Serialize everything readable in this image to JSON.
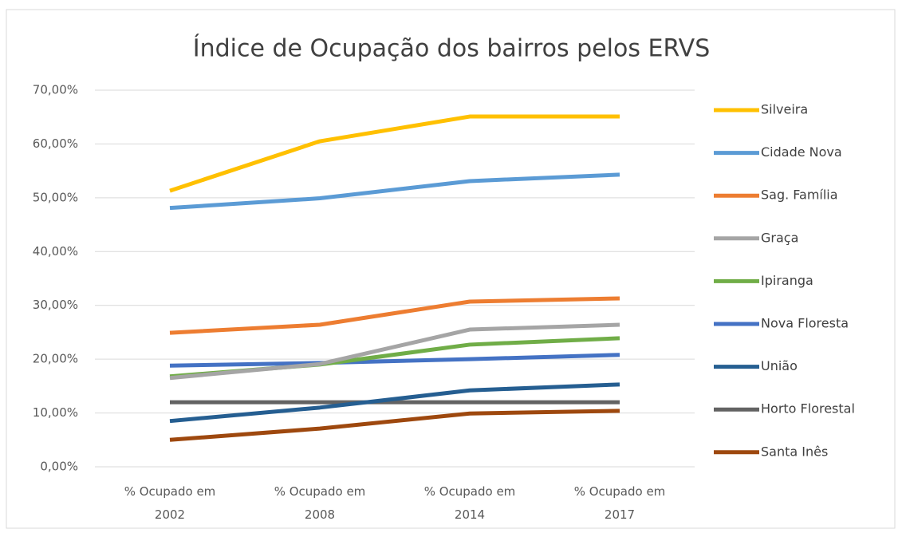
{
  "chart_data": {
    "type": "line",
    "title": "Índice de Ocupação dos bairros pelos ERVS",
    "categories": [
      "% Ocupado em 2002",
      "% Ocupado em 2008",
      "% Ocupado em 2014",
      "% Ocupado em 2017"
    ],
    "series": [
      {
        "name": "Silveira",
        "color": "#FFC000",
        "values": [
          51.3,
          60.5,
          65.1,
          65.1
        ]
      },
      {
        "name": "Cidade Nova",
        "color": "#5B9BD5",
        "values": [
          48.1,
          49.9,
          53.1,
          54.3
        ]
      },
      {
        "name": "Sag. Família",
        "color": "#ED7D31",
        "values": [
          24.9,
          26.4,
          30.7,
          31.3
        ]
      },
      {
        "name": "Graça",
        "color": "#A5A5A5",
        "values": [
          16.5,
          19.1,
          25.5,
          26.4
        ]
      },
      {
        "name": "Ipiranga",
        "color": "#70AD47",
        "values": [
          16.8,
          19.0,
          22.7,
          23.9
        ]
      },
      {
        "name": "Nova Floresta",
        "color": "#4472C4",
        "values": [
          18.8,
          19.3,
          20.0,
          20.8
        ]
      },
      {
        "name": "União",
        "color": "#255E91",
        "values": [
          8.5,
          11.0,
          14.2,
          15.3
        ]
      },
      {
        "name": "Horto Florestal",
        "color": "#636363",
        "values": [
          12.0,
          12.0,
          12.0,
          12.0
        ]
      },
      {
        "name": "Santa Inês",
        "color": "#9E480E",
        "values": [
          5.0,
          7.1,
          9.9,
          10.4
        ]
      }
    ],
    "ylim": [
      0,
      70
    ],
    "yticks": [
      {
        "value": 0,
        "label": "0,00%"
      },
      {
        "value": 10,
        "label": "10,00%"
      },
      {
        "value": 20,
        "label": "20,00%"
      },
      {
        "value": 30,
        "label": "30,00%"
      },
      {
        "value": 40,
        "label": "40,00%"
      },
      {
        "value": 50,
        "label": "50,00%"
      },
      {
        "value": 60,
        "label": "60,00%"
      },
      {
        "value": 70,
        "label": "70,00%"
      }
    ],
    "grid": true,
    "legend": "right"
  }
}
